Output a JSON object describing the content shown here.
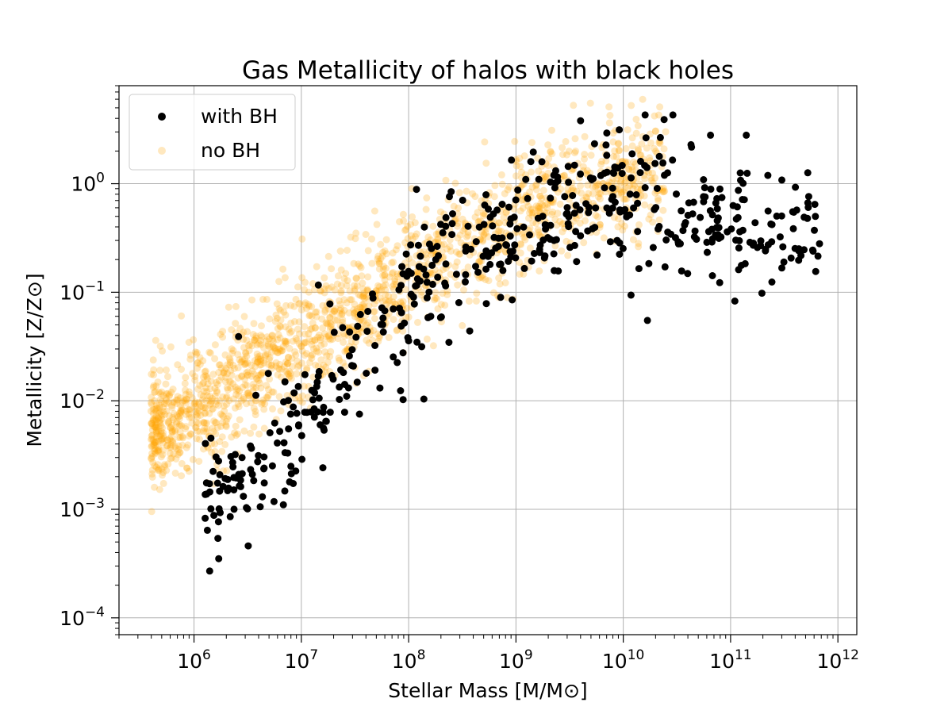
{
  "chart_data": {
    "type": "scatter",
    "title": "Gas Metallicity of halos with black holes",
    "xlabel_main": "Stellar Mass",
    "xlabel_unit": "[M/M⊙]",
    "ylabel_main": "Metallicity",
    "ylabel_unit": "[Z/Z⊙]",
    "xscale": "log",
    "yscale": "log",
    "xlim": [
      200000,
      1500000000000
    ],
    "ylim": [
      7e-05,
      8
    ],
    "grid": true,
    "legend_position": "top-left",
    "x_major_ticks": [
      {
        "value": 1000000,
        "base": "10",
        "exp": "6"
      },
      {
        "value": 10000000,
        "base": "10",
        "exp": "7"
      },
      {
        "value": 100000000,
        "base": "10",
        "exp": "8"
      },
      {
        "value": 1000000000,
        "base": "10",
        "exp": "9"
      },
      {
        "value": 10000000000,
        "base": "10",
        "exp": "10"
      },
      {
        "value": 100000000000,
        "base": "10",
        "exp": "11"
      },
      {
        "value": 1000000000000,
        "base": "10",
        "exp": "12"
      }
    ],
    "y_major_ticks": [
      {
        "value": 0.0001,
        "base": "10",
        "exp": "−4"
      },
      {
        "value": 0.001,
        "base": "10",
        "exp": "−3"
      },
      {
        "value": 0.01,
        "base": "10",
        "exp": "−2"
      },
      {
        "value": 0.1,
        "base": "10",
        "exp": "−1"
      },
      {
        "value": 1,
        "base": "10",
        "exp": "0"
      }
    ],
    "series": [
      {
        "name": "no BH",
        "color": "#ffa500",
        "opacity": 0.25,
        "generated": true,
        "count": 1800,
        "trend": [
          [
            5.6,
            -2.3
          ],
          [
            6.5,
            -1.8
          ],
          [
            7.0,
            -1.45
          ],
          [
            7.5,
            -1.15
          ],
          [
            8.0,
            -0.85
          ],
          [
            8.5,
            -0.55
          ],
          [
            9.0,
            -0.3
          ],
          [
            9.5,
            -0.12
          ],
          [
            10.0,
            0.0
          ],
          [
            10.4,
            0.1
          ]
        ],
        "x_range_log": [
          5.6,
          10.4
        ],
        "scatter_dex": 0.28
      },
      {
        "name": "with BH",
        "color": "#000000",
        "opacity": 1.0,
        "generated": true,
        "count": 520,
        "trend": [
          [
            6.2,
            -2.9
          ],
          [
            7.0,
            -2.2
          ],
          [
            7.5,
            -1.6
          ],
          [
            8.0,
            -1.05
          ],
          [
            8.5,
            -0.75
          ],
          [
            9.0,
            -0.5
          ],
          [
            9.5,
            -0.25
          ],
          [
            10.0,
            -0.05
          ],
          [
            10.5,
            -0.2
          ],
          [
            11.0,
            -0.35
          ],
          [
            11.8,
            -0.45
          ]
        ],
        "x_range_log": [
          6.1,
          11.85
        ],
        "scatter_dex": 0.3,
        "points": [
          [
            1400000,
            0.00027
          ],
          [
            3200000,
            0.00046
          ],
          [
            6800000,
            0.0011
          ],
          [
            2600000,
            0.039
          ],
          [
            11800000000,
            0.094
          ],
          [
            16800000000,
            0.055
          ],
          [
            14000000000,
            0.165
          ],
          [
            35000000000,
            0.157
          ],
          [
            140000000000,
            2.8
          ],
          [
            65000000000,
            2.8
          ],
          [
            16000000000,
            4.3
          ],
          [
            29000000000,
            4.3
          ],
          [
            67000000000,
            0.29
          ],
          [
            67000000000,
            0.38
          ],
          [
            34000000000,
            0.28
          ],
          [
            4000000000,
            3.8
          ],
          [
            24000000000,
            3.9
          ],
          [
            5700000000,
            0.22
          ],
          [
            15000000,
            0.006
          ],
          [
            3500000,
            0.0021
          ],
          [
            4500000,
            0.0024
          ]
        ]
      }
    ]
  }
}
